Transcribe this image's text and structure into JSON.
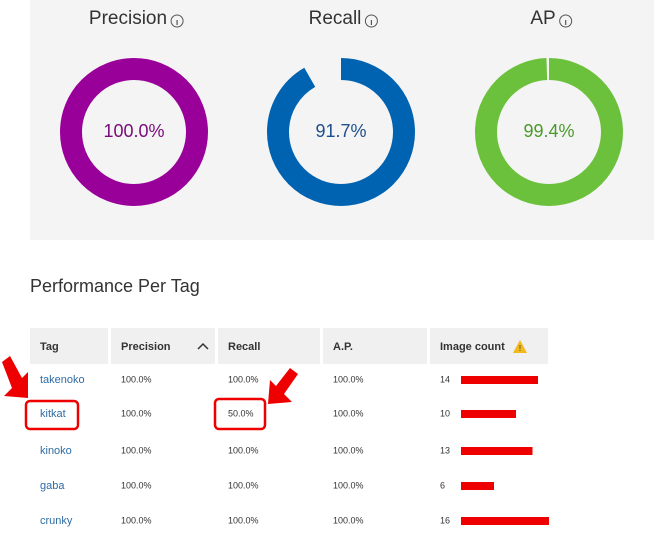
{
  "metrics": [
    {
      "name": "Precision",
      "value": 100.0,
      "label": "100.0%",
      "color": "#990099",
      "text_color": "#7a0a7a"
    },
    {
      "name": "Recall",
      "value": 91.7,
      "label": "91.7%",
      "color": "#0063b1",
      "text_color": "#1e4e8c"
    },
    {
      "name": "AP",
      "value": 99.4,
      "label": "99.4%",
      "color": "#6cc13c",
      "text_color": "#4a9a2a"
    }
  ],
  "section_title": "Performance Per Tag",
  "table": {
    "headers": [
      "Tag",
      "Precision",
      "Recall",
      "A.P.",
      "Image count"
    ],
    "rows": [
      [
        "takenoko",
        "100.0%",
        "100.0%",
        "100.0%",
        14
      ],
      [
        "kitkat",
        "100.0%",
        "50.0%",
        "100.0%",
        10
      ],
      [
        "kinoko",
        "100.0%",
        "100.0%",
        "100.0%",
        13
      ],
      [
        "gaba",
        "100.0%",
        "100.0%",
        "100.0%",
        6
      ],
      [
        "crunky",
        "100.0%",
        "100.0%",
        "100.0%",
        16
      ]
    ]
  }
}
